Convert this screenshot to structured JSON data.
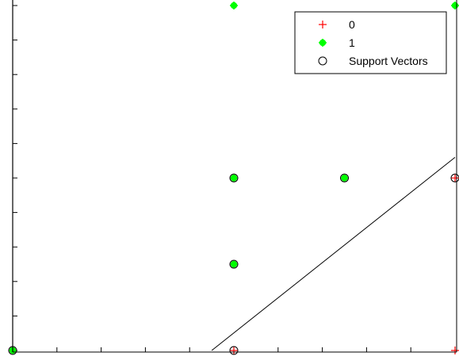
{
  "chart_data": {
    "type": "scatter",
    "title": "",
    "xlabel": "",
    "ylabel": "",
    "xlim": [
      0,
      10
    ],
    "ylim": [
      0,
      10
    ],
    "x_ticks": [
      0,
      1,
      2,
      3,
      4,
      5,
      6,
      7,
      8,
      9,
      10
    ],
    "y_ticks": [
      0,
      1,
      2,
      3,
      4,
      5,
      6,
      7,
      8,
      9,
      10
    ],
    "grid": false,
    "legend_position": "top-right",
    "series": [
      {
        "name": "0",
        "marker": "+",
        "color": "#ff0000",
        "points": [
          [
            5,
            0
          ],
          [
            10,
            5
          ],
          [
            10,
            0
          ]
        ]
      },
      {
        "name": "1",
        "marker": "*",
        "color": "#00ff00",
        "points": [
          [
            0,
            0
          ],
          [
            5,
            5
          ],
          [
            7.5,
            5
          ],
          [
            5,
            2.5
          ],
          [
            5,
            10
          ],
          [
            10,
            10
          ]
        ]
      },
      {
        "name": "Support Vectors",
        "marker": "o",
        "color": "#000000",
        "points": [
          [
            5,
            5
          ],
          [
            7.5,
            5
          ],
          [
            5,
            2.5
          ],
          [
            10,
            5
          ],
          [
            5,
            0
          ],
          [
            0,
            0
          ]
        ]
      }
    ],
    "decision_boundary": {
      "color": "#000000",
      "points": [
        [
          4.5,
          0
        ],
        [
          10,
          5.6
        ]
      ]
    }
  }
}
